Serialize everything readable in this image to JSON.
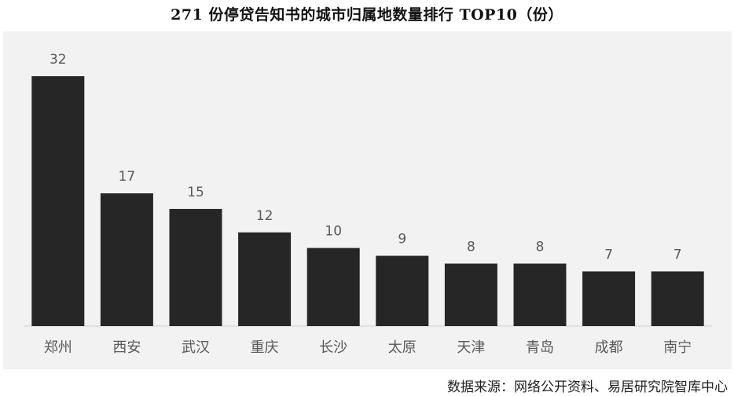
{
  "chart_data": {
    "type": "bar",
    "title": "271 份停贷告知书的城市归属地数量排行 TOP10（份）",
    "categories": [
      "郑州",
      "西安",
      "武汉",
      "重庆",
      "长沙",
      "太原",
      "天津",
      "青岛",
      "成都",
      "南宁"
    ],
    "values": [
      32,
      17,
      15,
      12,
      10,
      9,
      8,
      8,
      7,
      7
    ],
    "xlabel": "",
    "ylabel": "",
    "ylim": [
      0,
      32
    ],
    "grid": false,
    "legend": "none",
    "bar_color": "#262626",
    "label_color": "#595959",
    "background_color": "#f2f2f2",
    "source": "数据来源：网络公开资料、易居研究院智库中心"
  }
}
